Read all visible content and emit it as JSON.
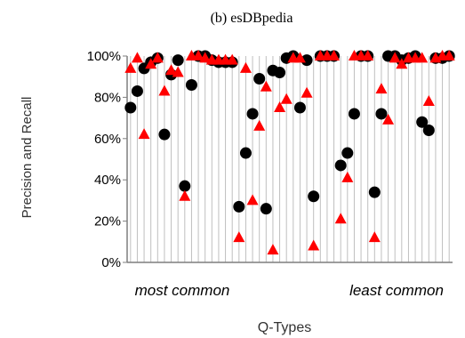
{
  "chart_data": {
    "type": "scatter",
    "title": "(b) esDBpedia",
    "xlabel": "Q-Types",
    "ylabel": "Precision and Recall",
    "x_start_label": "most common",
    "x_end_label": "least common",
    "ylim": [
      0,
      100
    ],
    "yticks": [
      "0%",
      "20%",
      "40%",
      "60%",
      "80%",
      "100%"
    ],
    "ytick_values": [
      0,
      20,
      40,
      60,
      80,
      100
    ],
    "xlim": [
      0.5,
      48.5
    ],
    "grid": "vertical",
    "colors": {
      "precision": "#000000",
      "recall": "#ff0000",
      "axis": "#7f7f7f",
      "grid": "#bfbfbf"
    },
    "series": [
      {
        "marker": "circle",
        "color": "#000000",
        "values": [
          75,
          83,
          94,
          97,
          99,
          62,
          91,
          98,
          37,
          86,
          100,
          100,
          98,
          97,
          97,
          97,
          27,
          53,
          72,
          89,
          26,
          93,
          92,
          99,
          100,
          75,
          98,
          32,
          100,
          100,
          100,
          47,
          53,
          72,
          100,
          100,
          34,
          72,
          100,
          100,
          98,
          99,
          100,
          68,
          64,
          99,
          99,
          100
        ]
      },
      {
        "marker": "triangle",
        "color": "#ff0000",
        "values": [
          94,
          99,
          62,
          96,
          99,
          83,
          93,
          92,
          32,
          100,
          100,
          99,
          98,
          98,
          98,
          98,
          12,
          94,
          30,
          66,
          85,
          6,
          75,
          79,
          99,
          99,
          82,
          8,
          100,
          100,
          100,
          21,
          41,
          100,
          100,
          100,
          12,
          84,
          69,
          99,
          96,
          99,
          99,
          99,
          78,
          99,
          100,
          100
        ]
      }
    ]
  }
}
